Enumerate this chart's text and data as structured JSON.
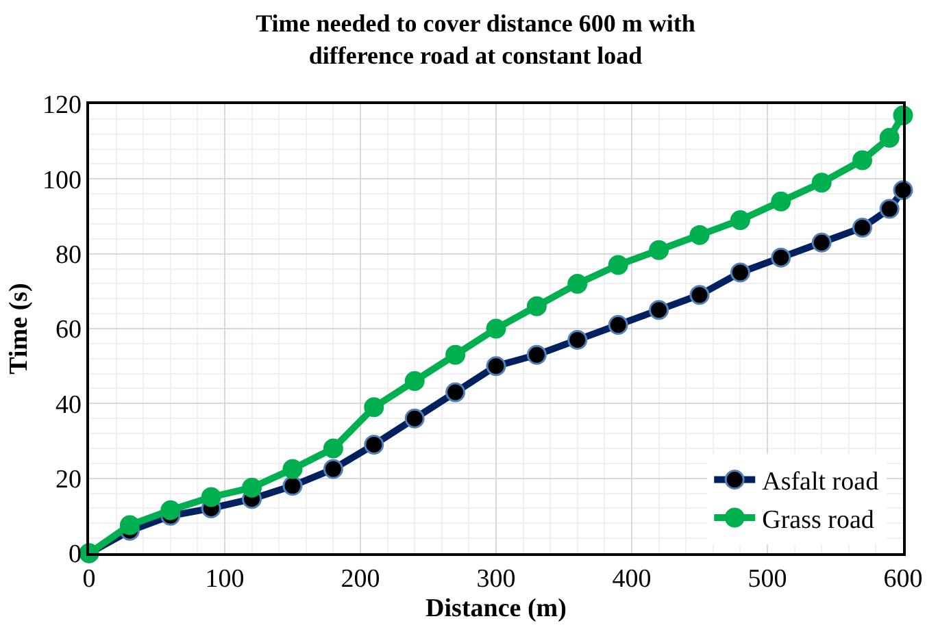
{
  "chart_data": {
    "type": "line",
    "title": "Time needed to cover distance 600 m with difference road at constant load",
    "xlabel": "Distance (m)",
    "ylabel": "Time (s)",
    "x": [
      0,
      30,
      60,
      90,
      120,
      150,
      180,
      210,
      240,
      270,
      300,
      330,
      360,
      390,
      420,
      450,
      480,
      510,
      540,
      570,
      590,
      600
    ],
    "series": [
      {
        "name": "Asfalt road",
        "color": "#002060",
        "values": [
          0,
          6,
          10,
          12,
          14.5,
          18,
          22.5,
          29,
          36,
          43,
          50,
          53,
          57,
          61,
          65,
          69,
          75,
          79,
          83,
          87,
          92,
          97
        ]
      },
      {
        "name": "Grass road",
        "color": "#00b050",
        "values": [
          0,
          7.5,
          11.5,
          15,
          17.5,
          22.5,
          28,
          39,
          46,
          53,
          60,
          66,
          72,
          77,
          81,
          85,
          89,
          94,
          99,
          105,
          111,
          117
        ]
      }
    ],
    "xlim": [
      0,
      600
    ],
    "xticks": [
      0,
      100,
      200,
      300,
      400,
      500,
      600
    ],
    "ylim": [
      0,
      120
    ],
    "yticks": [
      0,
      20,
      40,
      60,
      80,
      100,
      120
    ],
    "grid": true,
    "legend": "bottom right",
    "marker": "circle",
    "line_style": "solid"
  }
}
